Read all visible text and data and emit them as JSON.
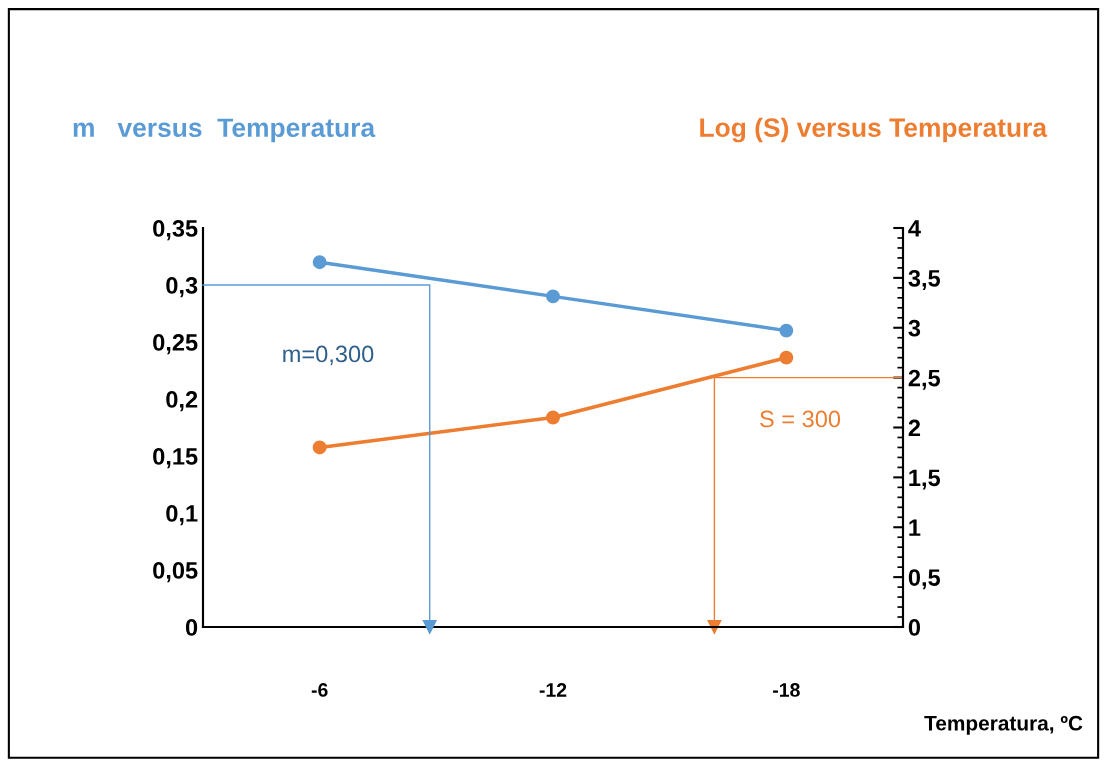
{
  "chart_data": {
    "type": "line",
    "ylabel": "m   versus  Temperatura",
    "y2label": "Log (S) versus Temperatura",
    "xlabel": "Temperatura, ºC",
    "x": [
      -6,
      -12,
      -18
    ],
    "xlim": [
      -3,
      -21
    ],
    "xticks": [
      -6,
      -12,
      -18
    ],
    "ylim": [
      0,
      0.35
    ],
    "yticks": [
      0,
      {
        "value": 0.05,
        "label": "0,05"
      },
      {
        "value": 0.1,
        "label": "0,1"
      },
      {
        "value": 0.15,
        "label": "0,15"
      },
      {
        "value": 0.2,
        "label": "0,2"
      },
      {
        "value": 0.25,
        "label": "0,25"
      },
      {
        "value": 0.3,
        "label": "0,3"
      },
      {
        "value": 0.35,
        "label": "0,35"
      }
    ],
    "y2lim": [
      0,
      4
    ],
    "y2ticks": [
      0,
      {
        "value": 0.5,
        "label": "0,5"
      },
      1,
      {
        "value": 1.5,
        "label": "1,5"
      },
      2,
      {
        "value": 2.5,
        "label": "2,5"
      },
      3,
      {
        "value": 3.5,
        "label": "3,5"
      },
      4
    ],
    "marker": "circle",
    "grid": false,
    "legend": false,
    "series": [
      {
        "color": "#5b9bd5",
        "values": [
          0.32,
          0.29,
          0.26
        ]
      },
      {
        "color": "#ed7d31",
        "axis": "y2",
        "values": [
          1.8,
          2.1,
          2.7
        ]
      },
      {
        "color": "#5b9bd5",
        "marker": "none",
        "x": [
          -3,
          -8.83,
          -8.83
        ],
        "values": [
          0.3,
          0.3,
          0
        ]
      },
      {
        "color": "#ed7d31",
        "marker": "none",
        "axis": "y2",
        "x": [
          -21,
          -16.15,
          -16.15
        ],
        "values": [
          2.5,
          2.5,
          0
        ]
      }
    ],
    "annotations": [
      "m=0,300",
      "S = 300"
    ]
  }
}
